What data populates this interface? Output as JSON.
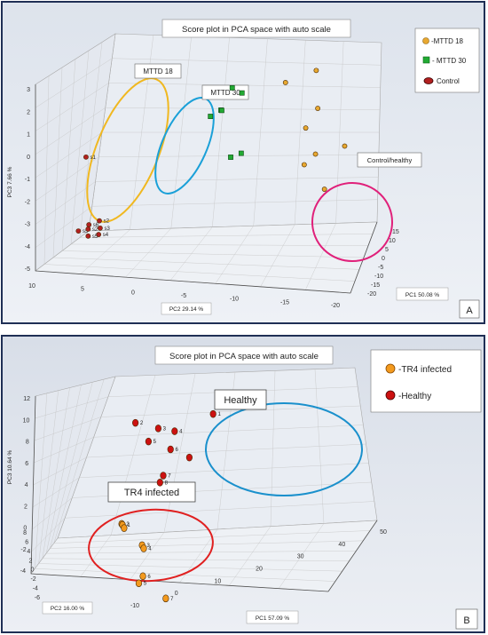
{
  "chart_data": [
    {
      "type": "scatter",
      "panel_label": "A",
      "title": "Score plot in PCA space with auto scale",
      "xlabel": "PC1 50.08 %",
      "ylabel": "PC2 29.14 %",
      "zlabel": "PC3 7.66 %",
      "x_ticks": [
        "-20",
        "-15",
        "-10",
        "-5",
        "0",
        "5",
        "10",
        "15"
      ],
      "y_ticks": [
        "10",
        "5",
        "0",
        "-5",
        "-10",
        "-15",
        "-20"
      ],
      "z_ticks": [
        "3",
        "2",
        "1",
        "0",
        "-1",
        "-2",
        "-3",
        "-4",
        "-5"
      ],
      "grid": true,
      "legend_position": "top-right",
      "legend": [
        "-MTTD 18",
        "- MTTD 30",
        "Control"
      ],
      "annotations": [
        "MTTD 18",
        "MTTD 30",
        "Control/healthy"
      ],
      "series": [
        {
          "name": "-MTTD 18",
          "color": "#e8a830",
          "marker": "circle",
          "points": [
            [
              4,
              -15,
              2.3
            ],
            [
              0,
              -18,
              -0.5
            ],
            [
              5,
              -12,
              1.6
            ],
            [
              3,
              -15,
              -1.2
            ],
            [
              1,
              -16,
              -2.5
            ],
            [
              2,
              -14,
              -1.6
            ],
            [
              6,
              -15,
              0.5
            ],
            [
              4,
              -14,
              -0.2
            ]
          ]
        },
        {
          "name": "- MTTD 30",
          "color": "#22aa33",
          "marker": "square",
          "points": [
            [
              3,
              -8,
              1.2
            ],
            [
              4,
              -7,
              1.3
            ],
            [
              3,
              -6,
              0.4
            ],
            [
              4,
              -6,
              0.3
            ],
            [
              3,
              -5,
              0.1
            ],
            [
              2,
              -8,
              -1.3
            ],
            [
              2,
              -7,
              -1.5
            ]
          ]
        },
        {
          "name": "Control",
          "color": "#b22020",
          "marker": "circle",
          "points": [
            [
              5,
              7,
              -2.2
            ],
            [
              -5,
              5,
              -4.0
            ],
            [
              -5,
              6,
              -4.2
            ],
            [
              -4,
              5,
              -4.4
            ],
            [
              -6,
              5,
              -4.5
            ],
            [
              -6,
              6,
              -4.6
            ],
            [
              -5,
              7,
              -4.5
            ],
            [
              -6,
              6,
              -4.3
            ]
          ],
          "point_labels": [
            "s1",
            "s2",
            "s6",
            "s3",
            "s4",
            "s5",
            "s5",
            "s2"
          ]
        }
      ]
    },
    {
      "type": "scatter",
      "panel_label": "B",
      "title": "Score plot in PCA space with auto scale",
      "xlabel": "PC1 57.09 %",
      "ylabel": "PC2 16.00 %",
      "zlabel": "PC3 10.64 %",
      "x_ticks": [
        "-10",
        "0",
        "10",
        "20",
        "30",
        "40",
        "50"
      ],
      "y_ticks": [
        "8",
        "6",
        "4",
        "2",
        "0",
        "-2",
        "-4",
        "-6"
      ],
      "z_ticks": [
        "12",
        "10",
        "8",
        "6",
        "4",
        "2",
        "0",
        "-2",
        "-4"
      ],
      "grid": true,
      "legend_position": "top-right",
      "legend": [
        "-TR4 infected",
        "-Healthy"
      ],
      "annotations": [
        "Healthy",
        "TR4 infected"
      ],
      "series": [
        {
          "name": "-TR4 infected",
          "color": "#f39a1e",
          "marker": "circle",
          "points": [
            [
              -3,
              4,
              0.2
            ],
            [
              -2,
              4,
              0
            ],
            [
              0,
              4,
              -0.5
            ],
            [
              -4,
              3,
              -1.5
            ],
            [
              -2,
              3,
              -2
            ],
            [
              -8,
              3,
              -4.5
            ],
            [
              -3,
              3,
              -4.4
            ],
            [
              -1,
              2,
              -6.5
            ]
          ],
          "point_labels": [
            "2",
            "1",
            "",
            "3",
            "4",
            "5",
            "6",
            "7"
          ]
        },
        {
          "name": "-Healthy",
          "color": "#cc1111",
          "marker": "circle",
          "points": [
            [
              5,
              0,
              9.7
            ],
            [
              40,
              5,
              4.6
            ],
            [
              42,
              4,
              4.0
            ],
            [
              36,
              3,
              4.5
            ],
            [
              30,
              4,
              4.1
            ],
            [
              31,
              3,
              3.4
            ],
            [
              28,
              2,
              3.1
            ],
            [
              22,
              3,
              2.0
            ],
            [
              18,
              3,
              1.8
            ]
          ],
          "point_labels": [
            "1",
            "2",
            "3",
            "4",
            "5",
            "6",
            "",
            "7",
            "8"
          ]
        }
      ]
    }
  ]
}
